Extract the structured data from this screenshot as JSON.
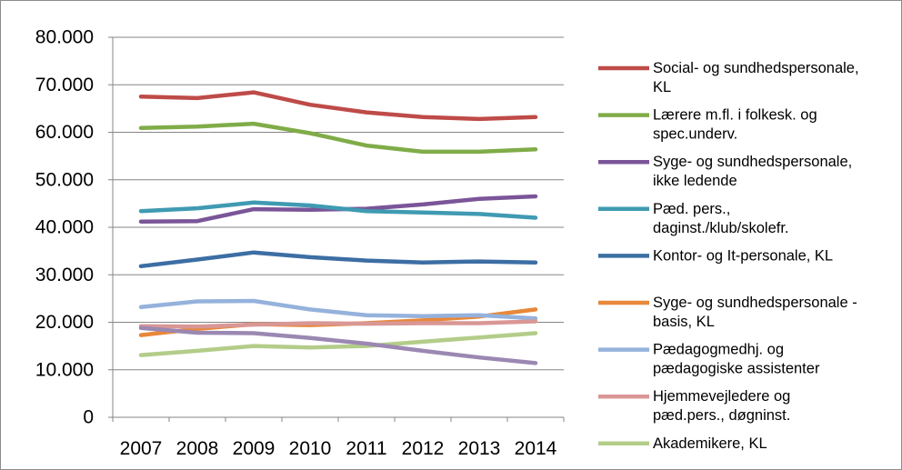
{
  "chart_data": {
    "type": "line",
    "categories": [
      "2007",
      "2008",
      "2009",
      "2010",
      "2011",
      "2012",
      "2013",
      "2014"
    ],
    "ylim": [
      0,
      80000
    ],
    "yticks": [
      0,
      10000,
      20000,
      30000,
      40000,
      50000,
      60000,
      70000,
      80000
    ],
    "ytick_labels": [
      "0",
      "10.000",
      "20.000",
      "30.000",
      "40.000",
      "50.000",
      "60.000",
      "70.000",
      "80.000"
    ],
    "grid": "horizontal",
    "legend_position": "right",
    "series": [
      {
        "name": "Social- og sundhedspersonale, KL",
        "label_lines": [
          "Social- og sundhedspersonale,",
          "KL"
        ],
        "color": "#be4b48",
        "values": [
          67500,
          67200,
          68400,
          65800,
          64200,
          63200,
          62800,
          63200
        ]
      },
      {
        "name": "Lærere m.fl. i folkesk. og spec.underv.",
        "label_lines": [
          "Lærere m.fl. i folkesk. og",
          "spec.underv."
        ],
        "color": "#7fac48",
        "values": [
          60900,
          61200,
          61800,
          59800,
          57200,
          55900,
          55900,
          56400
        ]
      },
      {
        "name": "Syge- og sundhedspersonale, ikke ledende",
        "label_lines": [
          "Syge- og sundhedspersonale,",
          "ikke ledende"
        ],
        "color": "#7a5598",
        "values": [
          41200,
          41300,
          43800,
          43700,
          43900,
          44800,
          46000,
          46500
        ]
      },
      {
        "name": "Pæd. pers., daginst./klub/skolefr.",
        "label_lines": [
          "Pæd. pers.,",
          "daginst./klub/skolefr."
        ],
        "color": "#3f9ab2",
        "values": [
          43400,
          44000,
          45200,
          44600,
          43400,
          43100,
          42800,
          42000
        ]
      },
      {
        "name": "Kontor- og It-personale, KL",
        "label_lines": [
          "Kontor- og It-personale, KL"
        ],
        "color": "#3c6ea4",
        "values": [
          31800,
          33200,
          34700,
          33700,
          33000,
          32600,
          32800,
          32600
        ]
      },
      {
        "name": "Syge- og sundhedspersonale - basis, KL",
        "label_lines": [
          "Syge- og sundhedspersonale -",
          "basis, KL"
        ],
        "color": "#e8883a",
        "values": [
          17300,
          18600,
          19600,
          19400,
          19800,
          20400,
          21200,
          22700
        ]
      },
      {
        "name": "Pædagogmedhj. og pædagogiske assistenter",
        "label_lines": [
          "Pædagogmedhj. og",
          "pædagogiske assistenter"
        ],
        "color": "#95b2dc",
        "values": [
          23200,
          24400,
          24500,
          22700,
          21500,
          21300,
          21500,
          20800
        ]
      },
      {
        "name": "Hjemmevejledere og pæd.pers., døgninst.",
        "label_lines": [
          "Hjemmevejledere og",
          "pæd.pers., døgninst."
        ],
        "color": "#d99795",
        "values": [
          19200,
          19100,
          19500,
          19800,
          19700,
          19800,
          19800,
          20200
        ]
      },
      {
        "name": "Akademikere, KL",
        "label_lines": [
          "Akademikere, KL"
        ],
        "color": "#b3cd89",
        "values": [
          13100,
          14000,
          15000,
          14700,
          15000,
          15900,
          16800,
          17700
        ]
      },
      {
        "name": "",
        "label_lines": [],
        "color": "#9b88b2",
        "values": [
          18800,
          17800,
          17700,
          16700,
          15500,
          14000,
          12600,
          11400
        ]
      }
    ]
  }
}
